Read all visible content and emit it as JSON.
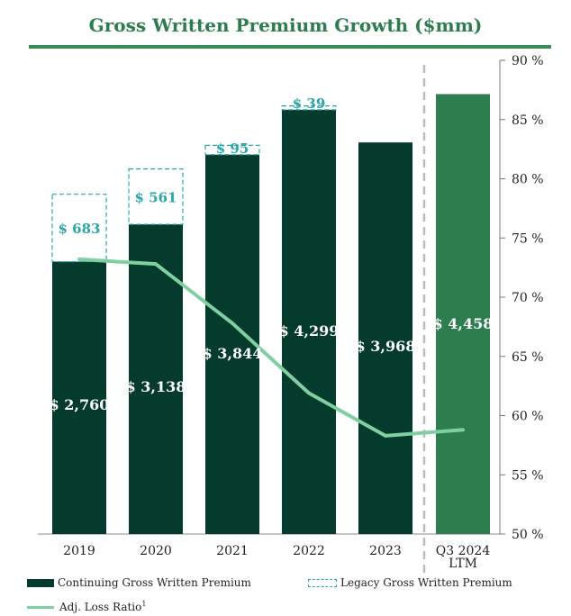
{
  "chart_data": {
    "type": "bar",
    "title": "Gross Written Premium Growth ($mm)",
    "categories": [
      "2019",
      "2020",
      "2021",
      "2022",
      "2023",
      "Q3 2024 LTM"
    ],
    "series": [
      {
        "name": "Continuing Gross Written Premium",
        "values": [
          2760,
          3138,
          3844,
          4299,
          3968,
          4458
        ],
        "labels": [
          "$ 2,760",
          "$ 3,138",
          "$ 3,844",
          "$ 4,299",
          "$ 3,968",
          "$ 4,458"
        ]
      },
      {
        "name": "Legacy Gross Written Premium",
        "values": [
          683,
          561,
          95,
          39,
          null,
          null
        ],
        "labels": [
          "$ 683",
          "$ 561",
          "$ 95",
          "$ 39",
          "",
          ""
        ]
      },
      {
        "name": "Adj. Loss Ratio",
        "axis": "right",
        "values": [
          73.2,
          72.8,
          67.8,
          61.9,
          58.3,
          58.8
        ]
      }
    ],
    "y_right": {
      "ticks": [
        "50 %",
        "55 %",
        "60 %",
        "65 %",
        "70 %",
        "75 %",
        "80 %",
        "85 %",
        "90 %"
      ],
      "range": [
        50,
        90
      ]
    },
    "y_left_range": [
      0,
      4800
    ],
    "legend_placement": "bottom",
    "legend_labels": [
      "Continuing Gross Written Premium",
      "Legacy Gross Written Premium",
      "Adj. Loss Ratio"
    ],
    "legend_superscript": "1",
    "colors": {
      "continuing": "#043b2c",
      "ltm": "#2e7d4f",
      "legacy": "#2aa6a8",
      "loss_ratio": "#7fcfa0",
      "title": "#2e7d4f"
    }
  }
}
